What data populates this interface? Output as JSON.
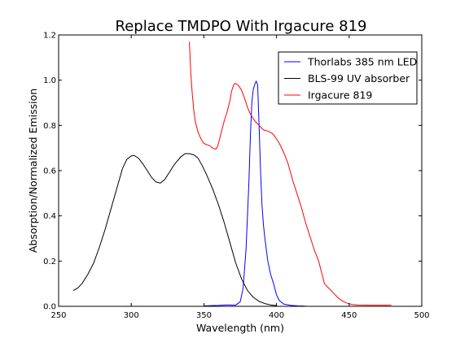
{
  "chart_data": {
    "type": "line",
    "title": "Replace TMDPO With Irgacure 819",
    "xlabel": "Wavelength (nm)",
    "ylabel": "Absorption/Normalized Emission",
    "xlim": [
      250,
      500
    ],
    "ylim": [
      0.0,
      1.2
    ],
    "xticks": [
      250,
      300,
      350,
      400,
      450,
      500
    ],
    "xtick_labels": [
      "250",
      "300",
      "350",
      "400",
      "450",
      "500"
    ],
    "yticks": [
      0.0,
      0.2,
      0.4,
      0.6,
      0.8,
      1.0,
      1.2
    ],
    "ytick_labels": [
      "0.0",
      "0.2",
      "0.4",
      "0.6",
      "0.8",
      "1.0",
      "1.2"
    ],
    "grid": false,
    "legend_position": "top-right",
    "series": [
      {
        "name": "Thorlabs 385 nm LED",
        "color": "#0000ff",
        "points": [
          [
            350,
            0.002
          ],
          [
            355,
            0.003
          ],
          [
            360,
            0.004
          ],
          [
            365,
            0.006
          ],
          [
            368,
            0.006
          ],
          [
            370,
            0.005
          ],
          [
            372,
            0.006
          ],
          [
            375,
            0.02
          ],
          [
            377,
            0.08
          ],
          [
            379,
            0.25
          ],
          [
            381,
            0.55
          ],
          [
            382,
            0.75
          ],
          [
            383,
            0.9
          ],
          [
            384,
            0.96
          ],
          [
            385,
            0.98
          ],
          [
            386,
            0.995
          ],
          [
            387,
            0.98
          ],
          [
            388,
            0.8
          ],
          [
            389,
            0.6
          ],
          [
            390,
            0.45
          ],
          [
            391,
            0.36
          ],
          [
            392,
            0.3
          ],
          [
            394,
            0.2
          ],
          [
            396,
            0.14
          ],
          [
            398,
            0.1
          ],
          [
            400,
            0.05
          ],
          [
            402,
            0.025
          ],
          [
            405,
            0.01
          ],
          [
            410,
            0.004
          ],
          [
            415,
            0.002
          ],
          [
            420,
            0.001
          ]
        ]
      },
      {
        "name": "BLS-99 UV absorber",
        "color": "#000000",
        "points": [
          [
            260,
            0.07
          ],
          [
            263,
            0.08
          ],
          [
            266,
            0.1
          ],
          [
            270,
            0.14
          ],
          [
            274,
            0.19
          ],
          [
            278,
            0.26
          ],
          [
            282,
            0.34
          ],
          [
            286,
            0.43
          ],
          [
            290,
            0.52
          ],
          [
            294,
            0.61
          ],
          [
            297,
            0.65
          ],
          [
            300,
            0.665
          ],
          [
            302,
            0.667
          ],
          [
            305,
            0.655
          ],
          [
            308,
            0.63
          ],
          [
            311,
            0.6
          ],
          [
            314,
            0.57
          ],
          [
            317,
            0.55
          ],
          [
            320,
            0.545
          ],
          [
            323,
            0.56
          ],
          [
            326,
            0.59
          ],
          [
            330,
            0.63
          ],
          [
            334,
            0.66
          ],
          [
            337,
            0.675
          ],
          [
            340,
            0.675
          ],
          [
            343,
            0.67
          ],
          [
            346,
            0.655
          ],
          [
            349,
            0.62
          ],
          [
            352,
            0.58
          ],
          [
            356,
            0.52
          ],
          [
            360,
            0.45
          ],
          [
            364,
            0.37
          ],
          [
            368,
            0.28
          ],
          [
            372,
            0.19
          ],
          [
            376,
            0.12
          ],
          [
            380,
            0.07
          ],
          [
            384,
            0.04
          ],
          [
            388,
            0.022
          ],
          [
            392,
            0.012
          ],
          [
            396,
            0.006
          ],
          [
            400,
            0.003
          ]
        ]
      },
      {
        "name": "Irgacure 819",
        "color": "#ff0000",
        "points": [
          [
            340,
            1.17
          ],
          [
            341,
            1.03
          ],
          [
            342,
            0.94
          ],
          [
            343,
            0.87
          ],
          [
            344,
            0.82
          ],
          [
            346,
            0.77
          ],
          [
            348,
            0.74
          ],
          [
            350,
            0.72
          ],
          [
            352,
            0.715
          ],
          [
            354,
            0.71
          ],
          [
            356,
            0.7
          ],
          [
            358,
            0.695
          ],
          [
            359,
            0.7
          ],
          [
            360,
            0.72
          ],
          [
            362,
            0.77
          ],
          [
            364,
            0.82
          ],
          [
            366,
            0.86
          ],
          [
            368,
            0.91
          ],
          [
            369,
            0.95
          ],
          [
            370,
            0.97
          ],
          [
            371,
            0.985
          ],
          [
            372,
            0.985
          ],
          [
            374,
            0.975
          ],
          [
            376,
            0.955
          ],
          [
            378,
            0.92
          ],
          [
            380,
            0.88
          ],
          [
            382,
            0.85
          ],
          [
            385,
            0.82
          ],
          [
            388,
            0.8
          ],
          [
            391,
            0.78
          ],
          [
            394,
            0.775
          ],
          [
            397,
            0.765
          ],
          [
            399,
            0.75
          ],
          [
            402,
            0.72
          ],
          [
            405,
            0.68
          ],
          [
            408,
            0.63
          ],
          [
            411,
            0.56
          ],
          [
            414,
            0.5
          ],
          [
            417,
            0.44
          ],
          [
            420,
            0.37
          ],
          [
            423,
            0.31
          ],
          [
            426,
            0.25
          ],
          [
            429,
            0.2
          ],
          [
            431,
            0.15
          ],
          [
            433,
            0.1
          ],
          [
            436,
            0.08
          ],
          [
            439,
            0.06
          ],
          [
            442,
            0.04
          ],
          [
            445,
            0.025
          ],
          [
            448,
            0.015
          ],
          [
            452,
            0.008
          ],
          [
            456,
            0.006
          ],
          [
            465,
            0.005
          ],
          [
            479,
            0.005
          ]
        ]
      }
    ]
  }
}
